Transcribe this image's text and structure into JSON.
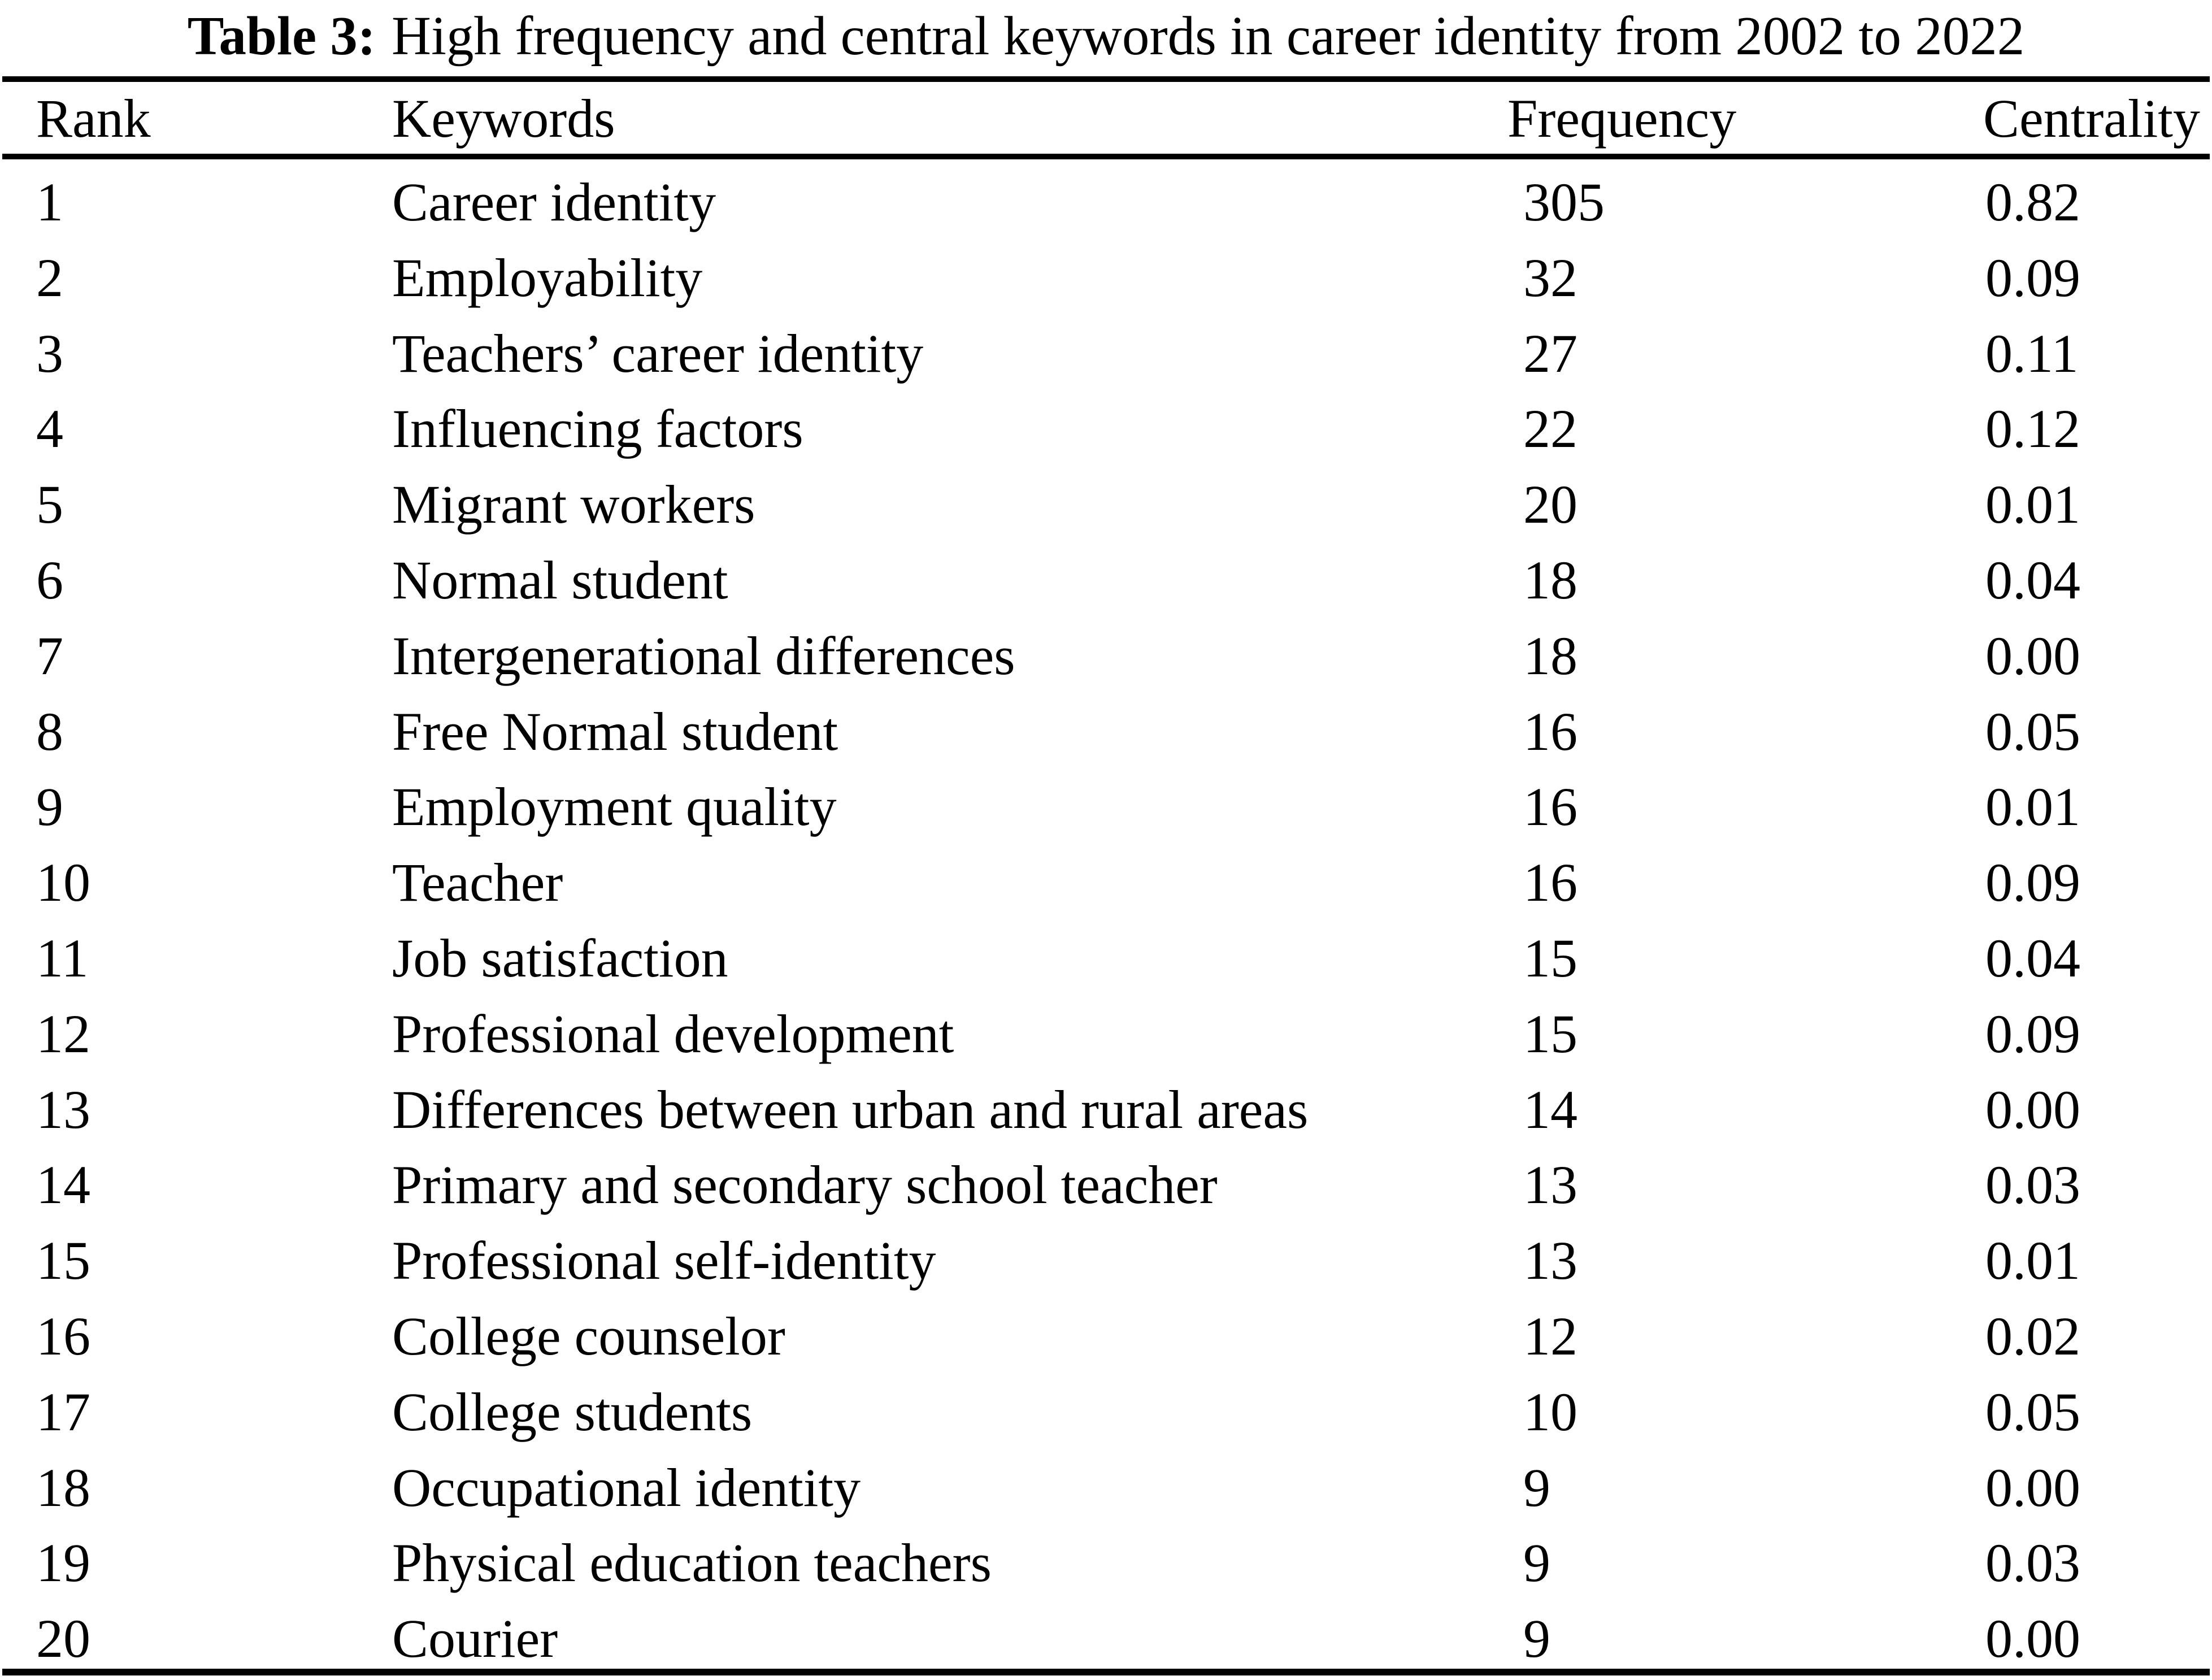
{
  "title": {
    "label": "Table 3:",
    "text": "High frequency and central keywords in career identity from 2002 to 2022"
  },
  "table": {
    "headers": {
      "rank": "Rank",
      "keywords": "Keywords",
      "frequency": "Frequency",
      "centrality": "Centrality"
    },
    "rows": [
      {
        "rank": "1",
        "keyword": "Career identity",
        "frequency": "305",
        "centrality": "0.82"
      },
      {
        "rank": "2",
        "keyword": "Employability",
        "frequency": "32",
        "centrality": "0.09"
      },
      {
        "rank": "3",
        "keyword": "Teachers’ career identity",
        "frequency": "27",
        "centrality": "0.11"
      },
      {
        "rank": "4",
        "keyword": "Influencing factors",
        "frequency": "22",
        "centrality": "0.12"
      },
      {
        "rank": "5",
        "keyword": "Migrant workers",
        "frequency": "20",
        "centrality": "0.01"
      },
      {
        "rank": "6",
        "keyword": "Normal student",
        "frequency": "18",
        "centrality": "0.04"
      },
      {
        "rank": "7",
        "keyword": "Intergenerational differences",
        "frequency": "18",
        "centrality": "0.00"
      },
      {
        "rank": "8",
        "keyword": "Free Normal student",
        "frequency": "16",
        "centrality": "0.05"
      },
      {
        "rank": "9",
        "keyword": "Employment quality",
        "frequency": "16",
        "centrality": "0.01"
      },
      {
        "rank": "10",
        "keyword": "Teacher",
        "frequency": "16",
        "centrality": "0.09"
      },
      {
        "rank": "11",
        "keyword": "Job satisfaction",
        "frequency": "15",
        "centrality": "0.04"
      },
      {
        "rank": "12",
        "keyword": "Professional development",
        "frequency": "15",
        "centrality": "0.09"
      },
      {
        "rank": "13",
        "keyword": "Differences between urban and rural areas",
        "frequency": "14",
        "centrality": "0.00"
      },
      {
        "rank": "14",
        "keyword": "Primary and secondary school teacher",
        "frequency": "13",
        "centrality": "0.03"
      },
      {
        "rank": "15",
        "keyword": "Professional self-identity",
        "frequency": "13",
        "centrality": "0.01"
      },
      {
        "rank": "16",
        "keyword": "College counselor",
        "frequency": "12",
        "centrality": "0.02"
      },
      {
        "rank": "17",
        "keyword": "College students",
        "frequency": "10",
        "centrality": "0.05"
      },
      {
        "rank": "18",
        "keyword": "Occupational identity",
        "frequency": "9",
        "centrality": "0.00"
      },
      {
        "rank": "19",
        "keyword": "Physical education teachers",
        "frequency": "9",
        "centrality": "0.03"
      },
      {
        "rank": "20",
        "keyword": "Courier",
        "frequency": "9",
        "centrality": "0.00"
      }
    ]
  },
  "colors": {
    "background": "#ffffff",
    "text": "#000000",
    "rule": "#000000"
  }
}
